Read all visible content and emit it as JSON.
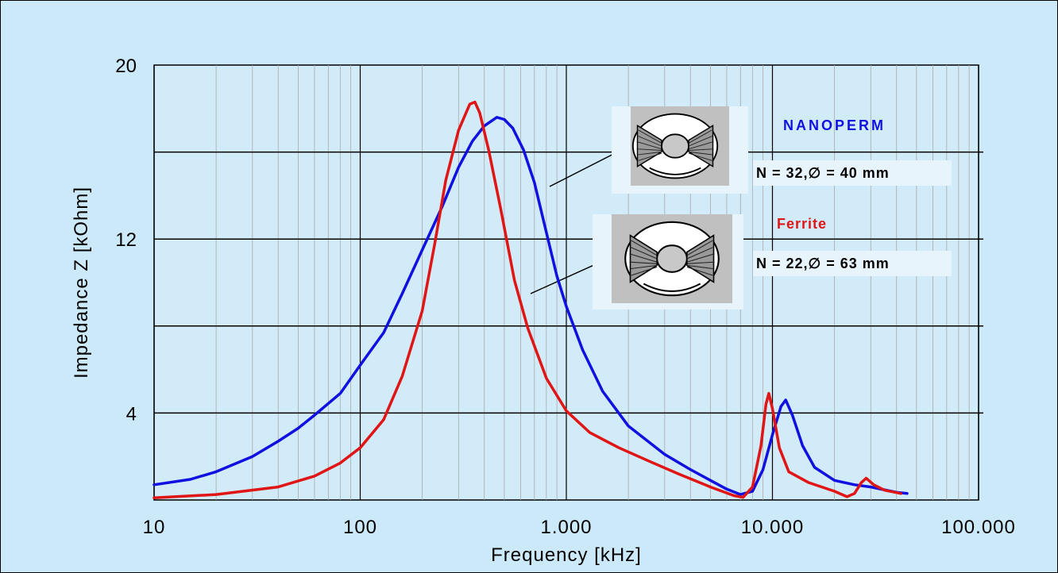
{
  "chart_data": {
    "type": "line",
    "xlabel": "Frequency [kHz]",
    "ylabel": "Impedance  Z [kOhm]",
    "x_scale": "log",
    "xlim": [
      10,
      100000
    ],
    "ylim": [
      0,
      20
    ],
    "x_ticks": [
      {
        "value": 10,
        "label": "10"
      },
      {
        "value": 100,
        "label": "100"
      },
      {
        "value": 1000,
        "label": "1.000"
      },
      {
        "value": 10000,
        "label": "10.000"
      },
      {
        "value": 100000,
        "label": "100.000"
      }
    ],
    "y_ticks": [
      {
        "value": 4,
        "label": "4"
      },
      {
        "value": 12,
        "label": "12"
      },
      {
        "value": 20,
        "label": "20"
      }
    ],
    "y_gridlines": [
      4,
      8,
      12,
      16
    ],
    "grid": true,
    "series": [
      {
        "name": "NANOPERM",
        "color": "#1010e0",
        "annotation": "N = 32,∅  = 40 mm",
        "points": [
          [
            10,
            0.7
          ],
          [
            15,
            0.95
          ],
          [
            20,
            1.3
          ],
          [
            30,
            2.0
          ],
          [
            40,
            2.7
          ],
          [
            50,
            3.3
          ],
          [
            60,
            3.9
          ],
          [
            80,
            4.9
          ],
          [
            100,
            6.2
          ],
          [
            130,
            7.7
          ],
          [
            160,
            9.5
          ],
          [
            200,
            11.5
          ],
          [
            250,
            13.5
          ],
          [
            300,
            15.3
          ],
          [
            350,
            16.5
          ],
          [
            400,
            17.2
          ],
          [
            460,
            17.6
          ],
          [
            500,
            17.5
          ],
          [
            550,
            17.1
          ],
          [
            620,
            16.1
          ],
          [
            700,
            14.6
          ],
          [
            800,
            12.3
          ],
          [
            900,
            10.3
          ],
          [
            1000,
            8.9
          ],
          [
            1200,
            6.9
          ],
          [
            1500,
            5.0
          ],
          [
            2000,
            3.4
          ],
          [
            3000,
            2.1
          ],
          [
            4000,
            1.4
          ],
          [
            5000,
            0.9
          ],
          [
            6000,
            0.5
          ],
          [
            7000,
            0.25
          ],
          [
            8000,
            0.4
          ],
          [
            9000,
            1.4
          ],
          [
            10000,
            3.0
          ],
          [
            11000,
            4.3
          ],
          [
            11600,
            4.6
          ],
          [
            12500,
            3.9
          ],
          [
            14000,
            2.5
          ],
          [
            16000,
            1.5
          ],
          [
            20000,
            0.9
          ],
          [
            25000,
            0.7
          ],
          [
            30000,
            0.6
          ],
          [
            40000,
            0.35
          ],
          [
            45000,
            0.3
          ]
        ]
      },
      {
        "name": "Ferrite",
        "color": "#e01515",
        "annotation": "N = 22,∅  = 63 mm",
        "points": [
          [
            10,
            0.1
          ],
          [
            20,
            0.25
          ],
          [
            40,
            0.6
          ],
          [
            60,
            1.1
          ],
          [
            80,
            1.7
          ],
          [
            100,
            2.4
          ],
          [
            130,
            3.7
          ],
          [
            160,
            5.7
          ],
          [
            200,
            8.7
          ],
          [
            230,
            11.8
          ],
          [
            260,
            14.7
          ],
          [
            300,
            17.0
          ],
          [
            340,
            18.2
          ],
          [
            360,
            18.3
          ],
          [
            380,
            17.8
          ],
          [
            420,
            16.1
          ],
          [
            480,
            13.4
          ],
          [
            560,
            10.1
          ],
          [
            650,
            7.9
          ],
          [
            800,
            5.6
          ],
          [
            1000,
            4.1
          ],
          [
            1300,
            3.1
          ],
          [
            1800,
            2.4
          ],
          [
            2500,
            1.8
          ],
          [
            3500,
            1.2
          ],
          [
            5000,
            0.6
          ],
          [
            6500,
            0.2
          ],
          [
            7200,
            0.12
          ],
          [
            8000,
            0.6
          ],
          [
            8800,
            2.5
          ],
          [
            9300,
            4.4
          ],
          [
            9600,
            4.9
          ],
          [
            10000,
            4.2
          ],
          [
            10800,
            2.4
          ],
          [
            12000,
            1.3
          ],
          [
            15000,
            0.8
          ],
          [
            20000,
            0.4
          ],
          [
            23000,
            0.15
          ],
          [
            25000,
            0.3
          ],
          [
            27000,
            0.8
          ],
          [
            28500,
            1.0
          ],
          [
            31000,
            0.7
          ],
          [
            35000,
            0.45
          ],
          [
            42000,
            0.3
          ]
        ]
      }
    ]
  },
  "legend": {
    "nanoperm_label": "NANOPERM",
    "nanoperm_spec": "N = 32,∅  = 40 mm",
    "ferrite_label": "Ferrite",
    "ferrite_spec": "N = 22,∅  = 63 mm"
  },
  "icons": {
    "nanoperm_core": "toroidal-core-icon",
    "ferrite_core": "toroidal-core-icon"
  }
}
